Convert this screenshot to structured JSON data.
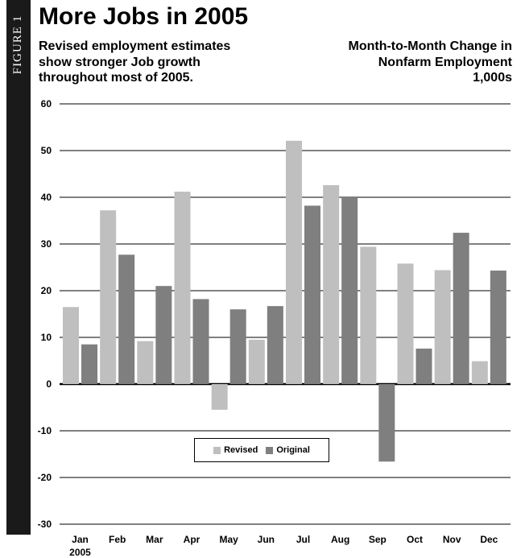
{
  "figure_label": "FIGURE 1",
  "header": {
    "title": "More Jobs in 2005",
    "subtitle_lines": [
      "Revised employment estimates",
      "show stronger Job growth",
      "throughout most of 2005."
    ],
    "measure_lines": [
      "Month-to-Month Change in",
      "Nonfarm Employment",
      "1,000s"
    ]
  },
  "colors": {
    "revised": "#bfbfbf",
    "original": "#7f7f7f",
    "figure_band": "#1a1a1a"
  },
  "chart_data": {
    "type": "bar",
    "title": "More Jobs in 2005",
    "subtitle": "Revised employment estimates show stronger Job growth throughout most of 2005.",
    "ylabel": "Month-to-Month Change in Nonfarm Employment 1,000s",
    "xlabel": "",
    "categories": [
      "Jan",
      "Feb",
      "Mar",
      "Apr",
      "May",
      "Jun",
      "Jul",
      "Aug",
      "Sep",
      "Oct",
      "Nov",
      "Dec"
    ],
    "year_label": "2005",
    "series": [
      {
        "name": "Revised",
        "color": "#bfbfbf",
        "values": [
          16.5,
          37.2,
          9.2,
          41.2,
          -5.5,
          9.5,
          52.1,
          42.6,
          29.4,
          25.8,
          24.4,
          4.9
        ]
      },
      {
        "name": "Original",
        "color": "#7f7f7f",
        "values": [
          8.5,
          27.7,
          21.0,
          18.2,
          16.0,
          16.7,
          38.2,
          40.0,
          -16.6,
          7.6,
          32.4,
          24.3
        ]
      }
    ],
    "ylim": [
      -30,
      60
    ],
    "yticks": [
      60,
      50,
      40,
      30,
      20,
      10,
      0,
      -10,
      -20,
      -30
    ],
    "grid": "horizontal",
    "legend_position": "bottom-center"
  }
}
